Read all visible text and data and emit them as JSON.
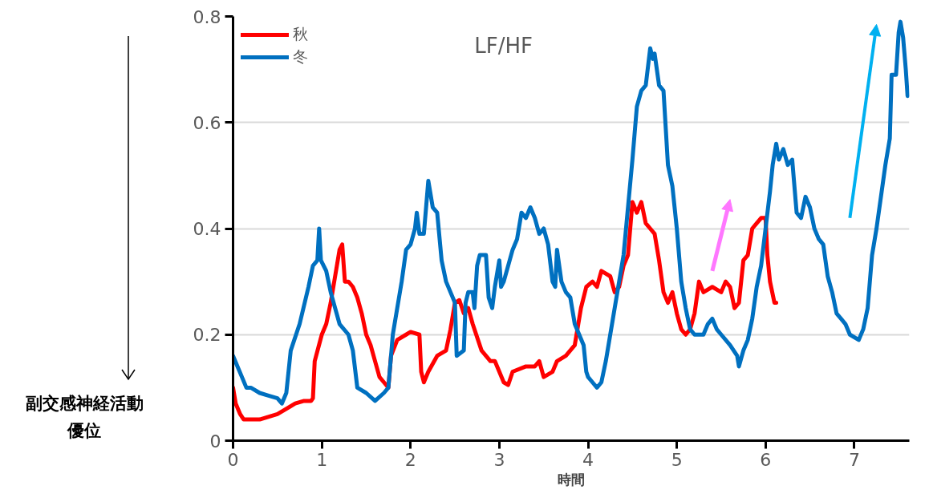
{
  "chart_data": {
    "type": "line",
    "title": "LF/HF",
    "xlabel": "時間",
    "annotations": [
      "副交感神経活動優位"
    ],
    "xlim": [
      0,
      7.62
    ],
    "ylim": [
      0,
      0.8
    ],
    "xticks": [
      0,
      1,
      2,
      3,
      4,
      5,
      6,
      7
    ],
    "yticks": [
      0,
      0.2,
      0.4,
      0.6,
      0.8
    ],
    "grid": "y",
    "legend": "top left",
    "line_style": "solid",
    "marker": "none",
    "series": [
      {
        "name": "秋",
        "color": "#ff0000",
        "x": [
          0,
          0.03,
          0.08,
          0.12,
          0.3,
          0.5,
          0.7,
          0.8,
          0.88,
          0.9,
          0.92,
          1.0,
          1.05,
          1.1,
          1.2,
          1.23,
          1.26,
          1.3,
          1.35,
          1.4,
          1.45,
          1.5,
          1.55,
          1.6,
          1.65,
          1.7,
          1.75,
          1.78,
          1.85,
          1.95,
          2.0,
          2.1,
          2.12,
          2.15,
          2.2,
          2.3,
          2.4,
          2.45,
          2.5,
          2.55,
          2.6,
          2.65,
          2.7,
          2.8,
          2.9,
          2.95,
          3.05,
          3.1,
          3.15,
          3.3,
          3.4,
          3.45,
          3.5,
          3.6,
          3.65,
          3.75,
          3.85,
          3.92,
          3.98,
          4.05,
          4.1,
          4.15,
          4.25,
          4.3,
          4.35,
          4.4,
          4.45,
          4.5,
          4.55,
          4.6,
          4.65,
          4.7,
          4.75,
          4.8,
          4.85,
          4.9,
          4.95,
          5.0,
          5.05,
          5.1,
          5.15,
          5.2,
          5.25,
          5.3,
          5.4,
          5.5,
          5.55,
          5.6,
          5.65,
          5.7,
          5.75,
          5.8,
          5.85,
          5.9,
          5.95,
          6.0,
          6.02,
          6.05,
          6.1,
          6.12
        ],
        "values": [
          0.1,
          0.07,
          0.05,
          0.04,
          0.04,
          0.05,
          0.07,
          0.075,
          0.075,
          0.08,
          0.15,
          0.2,
          0.22,
          0.26,
          0.36,
          0.37,
          0.3,
          0.3,
          0.29,
          0.27,
          0.24,
          0.2,
          0.18,
          0.15,
          0.12,
          0.11,
          0.1,
          0.16,
          0.19,
          0.2,
          0.205,
          0.2,
          0.13,
          0.11,
          0.13,
          0.16,
          0.17,
          0.21,
          0.26,
          0.265,
          0.24,
          0.25,
          0.22,
          0.17,
          0.15,
          0.15,
          0.11,
          0.105,
          0.13,
          0.14,
          0.14,
          0.15,
          0.12,
          0.13,
          0.15,
          0.16,
          0.18,
          0.25,
          0.29,
          0.3,
          0.29,
          0.32,
          0.31,
          0.28,
          0.29,
          0.33,
          0.35,
          0.45,
          0.43,
          0.45,
          0.41,
          0.4,
          0.39,
          0.34,
          0.28,
          0.26,
          0.28,
          0.24,
          0.21,
          0.2,
          0.21,
          0.24,
          0.3,
          0.28,
          0.29,
          0.28,
          0.3,
          0.29,
          0.25,
          0.26,
          0.34,
          0.35,
          0.4,
          0.41,
          0.42,
          0.42,
          0.35,
          0.3,
          0.26,
          0.26
        ]
      },
      {
        "name": "冬",
        "color": "#0070c0",
        "x": [
          0,
          0.05,
          0.1,
          0.15,
          0.2,
          0.3,
          0.4,
          0.5,
          0.55,
          0.6,
          0.65,
          0.75,
          0.85,
          0.9,
          0.95,
          0.97,
          0.99,
          1.05,
          1.1,
          1.2,
          1.3,
          1.35,
          1.4,
          1.5,
          1.6,
          1.7,
          1.75,
          1.8,
          1.85,
          1.9,
          1.95,
          2.0,
          2.05,
          2.07,
          2.1,
          2.15,
          2.2,
          2.25,
          2.3,
          2.35,
          2.4,
          2.45,
          2.5,
          2.52,
          2.6,
          2.62,
          2.65,
          2.7,
          2.72,
          2.75,
          2.78,
          2.85,
          2.88,
          2.92,
          2.95,
          3.0,
          3.02,
          3.05,
          3.15,
          3.2,
          3.25,
          3.3,
          3.35,
          3.4,
          3.45,
          3.5,
          3.55,
          3.6,
          3.63,
          3.65,
          3.7,
          3.75,
          3.8,
          3.85,
          3.9,
          3.95,
          3.98,
          4.0,
          4.05,
          4.1,
          4.15,
          4.2,
          4.25,
          4.3,
          4.4,
          4.5,
          4.55,
          4.6,
          4.65,
          4.7,
          4.73,
          4.75,
          4.8,
          4.85,
          4.9,
          4.95,
          5.0,
          5.05,
          5.1,
          5.15,
          5.2,
          5.3,
          5.35,
          5.4,
          5.45,
          5.5,
          5.6,
          5.68,
          5.7,
          5.75,
          5.8,
          5.85,
          5.9,
          5.95,
          6.0,
          6.05,
          6.08,
          6.12,
          6.15,
          6.2,
          6.25,
          6.3,
          6.35,
          6.4,
          6.45,
          6.5,
          6.55,
          6.6,
          6.65,
          6.7,
          6.75,
          6.8,
          6.85,
          6.9,
          6.95,
          7.05,
          7.1,
          7.15,
          7.2,
          7.25,
          7.3,
          7.35,
          7.4,
          7.42,
          7.47,
          7.5,
          7.52,
          7.55,
          7.58,
          7.6
        ],
        "values": [
          0.16,
          0.14,
          0.12,
          0.1,
          0.1,
          0.09,
          0.085,
          0.08,
          0.07,
          0.09,
          0.17,
          0.22,
          0.29,
          0.33,
          0.34,
          0.4,
          0.34,
          0.32,
          0.28,
          0.22,
          0.2,
          0.17,
          0.1,
          0.09,
          0.075,
          0.09,
          0.1,
          0.2,
          0.25,
          0.3,
          0.36,
          0.37,
          0.4,
          0.43,
          0.39,
          0.39,
          0.49,
          0.44,
          0.43,
          0.34,
          0.3,
          0.28,
          0.26,
          0.16,
          0.17,
          0.26,
          0.28,
          0.28,
          0.25,
          0.33,
          0.35,
          0.35,
          0.27,
          0.25,
          0.29,
          0.34,
          0.29,
          0.3,
          0.36,
          0.38,
          0.43,
          0.42,
          0.44,
          0.42,
          0.39,
          0.4,
          0.37,
          0.3,
          0.29,
          0.36,
          0.3,
          0.28,
          0.27,
          0.22,
          0.2,
          0.18,
          0.13,
          0.12,
          0.11,
          0.1,
          0.11,
          0.15,
          0.2,
          0.25,
          0.35,
          0.53,
          0.63,
          0.66,
          0.67,
          0.74,
          0.72,
          0.73,
          0.67,
          0.66,
          0.52,
          0.48,
          0.4,
          0.3,
          0.25,
          0.21,
          0.2,
          0.2,
          0.22,
          0.23,
          0.21,
          0.2,
          0.18,
          0.16,
          0.14,
          0.17,
          0.19,
          0.23,
          0.29,
          0.33,
          0.4,
          0.47,
          0.52,
          0.56,
          0.53,
          0.55,
          0.52,
          0.53,
          0.43,
          0.42,
          0.46,
          0.44,
          0.4,
          0.38,
          0.37,
          0.31,
          0.28,
          0.24,
          0.23,
          0.22,
          0.2,
          0.19,
          0.21,
          0.25,
          0.35,
          0.4,
          0.46,
          0.52,
          0.57,
          0.69,
          0.69,
          0.77,
          0.79,
          0.76,
          0.7,
          0.65
        ]
      }
    ]
  }
}
